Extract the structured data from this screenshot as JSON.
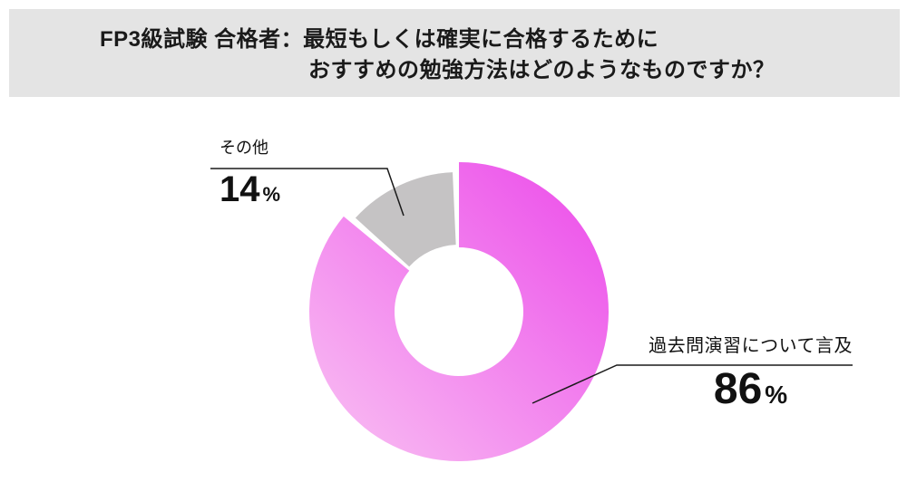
{
  "header": {
    "title_line1": "FP3級試験 合格者：最短もしくは確実に合格するために",
    "title_line2": "おすすめの勉強方法はどのようなものですか？",
    "background": "#e4e4e4",
    "text_color": "#1a1a1a"
  },
  "chart_data": {
    "type": "pie",
    "donut": true,
    "title": "FP3級試験 合格者：最短もしくは確実に合格するために おすすめの勉強方法はどのようなものですか？",
    "start_angle_deg": 0,
    "direction": "clockwise",
    "legend": "none",
    "slices": [
      {
        "label": "過去問演習について言及",
        "value": 86,
        "unit": "%",
        "gradient": [
          "#ec4dea",
          "#f8b8f2"
        ]
      },
      {
        "label": "その他",
        "value": 14,
        "unit": "%",
        "color": "#c5c3c4"
      }
    ],
    "leader_line_color": "#1a1a1a"
  }
}
